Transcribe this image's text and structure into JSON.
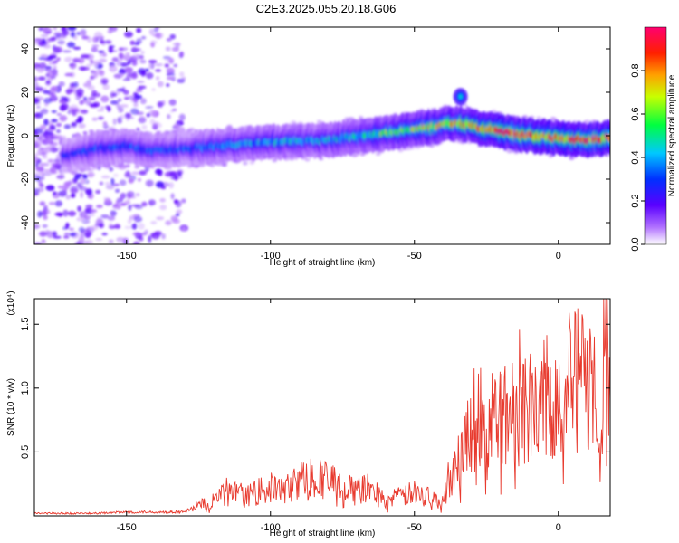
{
  "title": "C2E3.2025.055.20.18.G06",
  "chart_data": [
    {
      "type": "heatmap",
      "xlabel": "Height of straight line (km)",
      "ylabel": "Frequency (Hz)",
      "xlim": [
        -182,
        18
      ],
      "ylim": [
        -50,
        50
      ],
      "xticks": [
        -150,
        -100,
        -50,
        0
      ],
      "xtick_labels": [
        "-150",
        "-100",
        "-50",
        "0"
      ],
      "yticks": [
        -40,
        -20,
        0,
        20,
        40
      ],
      "ytick_labels": [
        "-40",
        "-20",
        "0",
        "20",
        "40"
      ],
      "colorbar": {
        "label": "Normalized spectral amplitude",
        "range": [
          0,
          1
        ],
        "ticks": [
          0.0,
          0.2,
          0.4,
          0.6,
          0.8
        ],
        "tick_labels": [
          "0.0",
          "0.2",
          "0.4",
          "0.6",
          "0.8"
        ],
        "colormap": [
          "#ffffff",
          "#8a00e6",
          "#2200ff",
          "#00e5ff",
          "#00ff33",
          "#ffff00",
          "#ff8800",
          "#ff0000",
          "#ff0066"
        ]
      },
      "ridge": {
        "x": [
          -170,
          -160,
          -150,
          -140,
          -130,
          -120,
          -100,
          -80,
          -60,
          -45,
          -35,
          -28,
          -20,
          -10,
          0,
          10,
          18
        ],
        "frequency": [
          -9,
          -6,
          -5,
          -7,
          -6,
          -5,
          -3,
          -2,
          1,
          4,
          6,
          4,
          2,
          0,
          -1,
          -2,
          -1
        ],
        "amplitude": [
          0.25,
          0.3,
          0.3,
          0.3,
          0.3,
          0.35,
          0.4,
          0.4,
          0.55,
          0.65,
          0.7,
          0.75,
          0.9,
          0.9,
          0.8,
          0.85,
          0.85
        ]
      },
      "noise_region_x": [
        -182,
        -130
      ],
      "side_feature": {
        "x": -34,
        "frequency": 18
      }
    },
    {
      "type": "line",
      "xlabel": "Height of straight line (km)",
      "ylabel": "SNR (10 * v/v)",
      "y_multiplier": "(x10⁴)",
      "xlim": [
        -182,
        18
      ],
      "ylim": [
        0,
        1.7
      ],
      "xticks": [
        -150,
        -100,
        -50,
        0
      ],
      "xtick_labels": [
        "-150",
        "-100",
        "-50",
        "0"
      ],
      "yticks": [
        0.5,
        1.0,
        1.5
      ],
      "ytick_labels": [
        "0.5",
        "1.0",
        "1.5"
      ],
      "series": [
        {
          "color": "#e83a2e",
          "x": [
            -182,
            -170,
            -160,
            -150,
            -140,
            -130,
            -125,
            -120,
            -115,
            -110,
            -105,
            -100,
            -95,
            -90,
            -85,
            -80,
            -75,
            -70,
            -65,
            -60,
            -55,
            -50,
            -45,
            -40,
            -38,
            -35,
            -32,
            -30,
            -28,
            -25,
            -22,
            -20,
            -15,
            -10,
            -5,
            0,
            3,
            5,
            8,
            10,
            12,
            14,
            16,
            18
          ],
          "y": [
            0.02,
            0.02,
            0.02,
            0.03,
            0.03,
            0.03,
            0.08,
            0.12,
            0.2,
            0.15,
            0.18,
            0.22,
            0.2,
            0.28,
            0.3,
            0.28,
            0.22,
            0.2,
            0.22,
            0.12,
            0.15,
            0.18,
            0.15,
            0.1,
            0.3,
            0.4,
            0.6,
            0.75,
            0.9,
            0.55,
            0.8,
            0.75,
            0.85,
            0.9,
            0.9,
            0.95,
            1.05,
            1.0,
            1.1,
            0.95,
            1.15,
            0.5,
            1.2,
            1.05
          ]
        }
      ]
    }
  ]
}
